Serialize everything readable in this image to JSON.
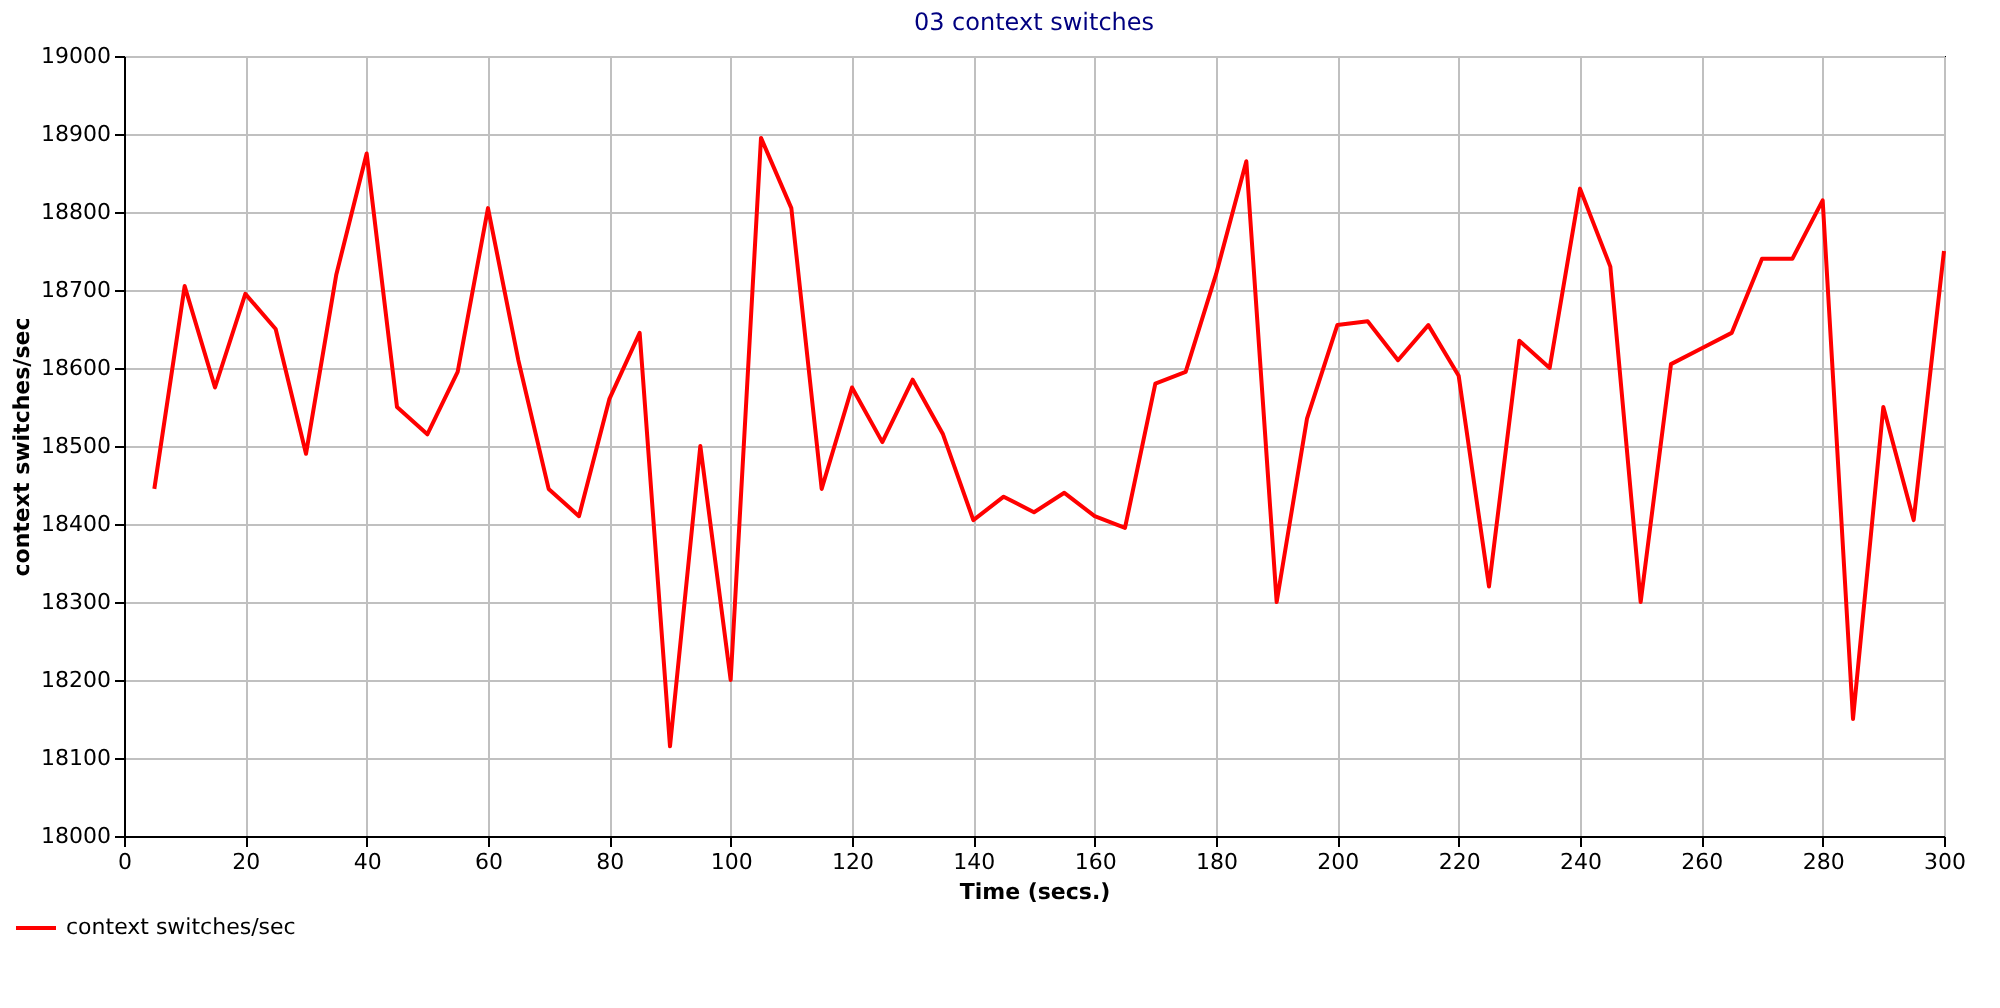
{
  "chart_data": {
    "type": "line",
    "title": "03 context switches",
    "xlabel": "Time (secs.)",
    "ylabel": "context switches/sec",
    "x": [
      5,
      10,
      15,
      20,
      25,
      30,
      35,
      40,
      45,
      50,
      55,
      60,
      65,
      70,
      75,
      80,
      85,
      90,
      95,
      100,
      105,
      110,
      115,
      120,
      125,
      130,
      135,
      140,
      145,
      150,
      155,
      160,
      165,
      170,
      175,
      180,
      185,
      190,
      195,
      200,
      205,
      210,
      215,
      220,
      225,
      230,
      235,
      240,
      245,
      250,
      255,
      260,
      265,
      270,
      275,
      280,
      285,
      290,
      295,
      300
    ],
    "series": [
      {
        "name": "context switches/sec",
        "color": "#ff0000",
        "values": [
          18445,
          18705,
          18575,
          18695,
          18650,
          18490,
          18720,
          18875,
          18550,
          18515,
          18595,
          18805,
          18610,
          18445,
          18410,
          18560,
          18645,
          18115,
          18500,
          18200,
          18895,
          18805,
          18445,
          18575,
          18505,
          18585,
          18515,
          18405,
          18435,
          18415,
          18440,
          18410,
          18395,
          18580,
          18595,
          18720,
          18865,
          18300,
          18535,
          18655,
          18660,
          18610,
          18655,
          18590,
          18320,
          18635,
          18600,
          18830,
          18730,
          18300,
          18605,
          18625,
          18645,
          18740,
          18740,
          18815,
          18150,
          18550,
          18405,
          18750
        ]
      }
    ],
    "xlim": [
      0,
      300
    ],
    "xticks": [
      0,
      20,
      40,
      60,
      80,
      100,
      120,
      140,
      160,
      180,
      200,
      220,
      240,
      260,
      280,
      300
    ],
    "ylim": [
      18000,
      19000
    ],
    "yticks": [
      18000,
      18100,
      18200,
      18300,
      18400,
      18500,
      18600,
      18700,
      18800,
      18900,
      19000
    ],
    "grid": true,
    "legend": "bottom left",
    "marker": "none",
    "line_style": "solid"
  }
}
